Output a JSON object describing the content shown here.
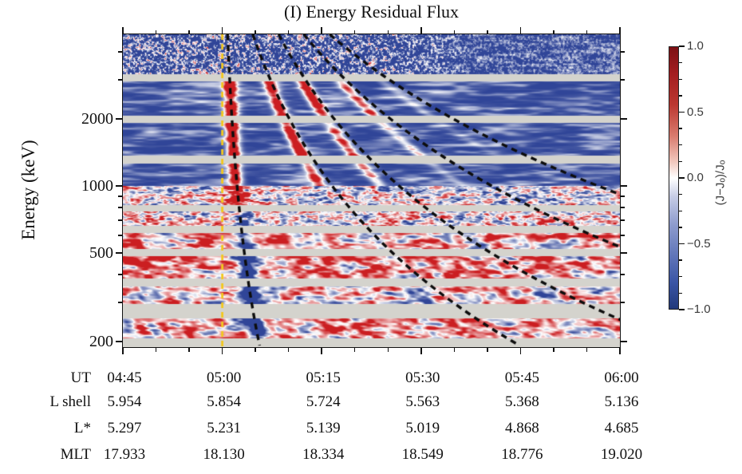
{
  "chart_data": {
    "type": "heatmap",
    "title": "(I) Energy Residual Flux",
    "x_axis": {
      "label": "UT",
      "start": "04:45",
      "end": "06:00",
      "duration_minutes": 75,
      "major_tick_minutes": 15,
      "minor_tick_minutes": 5
    },
    "y_axis": {
      "label": "Energy (keV)",
      "scale": "log",
      "range_keV": [
        190,
        4797
      ],
      "major_ticks_keV": [
        2000,
        1000,
        500,
        200
      ],
      "minor_ticks_keV": [
        4000,
        3000,
        900,
        800,
        700,
        600,
        400,
        300
      ]
    },
    "colorbar": {
      "label": "(J−Jₒ)/Jₒ",
      "range": [
        -1.0,
        1.0
      ],
      "major_tick_labels": [
        "1.0",
        "0.5",
        "0.0",
        "−0.5",
        "−1.0"
      ],
      "minor_tick_step": 0.125,
      "color_positive": "#c01e21",
      "color_zero": "#ffffff",
      "color_negative": "#304598"
    },
    "injection_line": {
      "time_label": "05:00",
      "time_minutes": 15,
      "color": "#f3c81e",
      "style": "dashed-vertical"
    },
    "drift_echo_curves": {
      "style": "dashed-black",
      "model": "t_minutes(E) = t_top + amp*((4797/E_keV)^0.5 - 1)/3.894",
      "curves": [
        {
          "t_top_min": 15.8,
          "amp_min": 4.7
        },
        {
          "t_top_min": 19.6,
          "amp_min": 39.2
        },
        {
          "t_top_min": 23.5,
          "amp_min": 59.5
        },
        {
          "t_top_min": 27.3,
          "amp_min": 92.8
        },
        {
          "t_top_min": 31.2,
          "amp_min": 132.5
        }
      ]
    },
    "data_gap_bands_keV": [
      [
        2970,
        3200
      ],
      [
        1920,
        2070
      ],
      [
        1270,
        1370
      ],
      [
        768,
        827
      ],
      [
        615,
        662
      ],
      [
        484,
        521
      ],
      [
        356,
        387
      ],
      [
        256,
        295
      ],
      [
        190,
        208
      ]
    ],
    "channels": [
      {
        "keV": [
          3200,
          4797
        ],
        "texture": "speckle"
      },
      {
        "keV": [
          2070,
          2970
        ],
        "texture": "stripes",
        "stripe_strengths": [
          2.4,
          2.2,
          2.0,
          1.6,
          0.5
        ]
      },
      {
        "keV": [
          1370,
          1920
        ],
        "texture": "stripes",
        "stripe_strengths": [
          2.4,
          2.1,
          1.7,
          0.9,
          0.2
        ]
      },
      {
        "keV": [
          1000,
          1270
        ],
        "texture": "stripes",
        "stripe_strengths": [
          2.2,
          1.8,
          1.2,
          0.35,
          0
        ]
      },
      {
        "keV": [
          827,
          1000
        ],
        "texture": "mottle-fine",
        "bias": -0.05,
        "red_streak1": 1.3
      },
      {
        "keV": [
          662,
          768
        ],
        "texture": "mottle-fine",
        "bias": 0.05,
        "blue_streak1": 0.6
      },
      {
        "keV": [
          521,
          615
        ],
        "texture": "mottle",
        "bias": 0.22,
        "blue_streak1": 1.6
      },
      {
        "keV": [
          387,
          484
        ],
        "texture": "mottle",
        "bias": 0.33,
        "blue_streak1": 2.2
      },
      {
        "keV": [
          295,
          356
        ],
        "texture": "mottle",
        "bias": 0.15,
        "blue_streak1": 2.0
      },
      {
        "keV": [
          208,
          256
        ],
        "texture": "mottle",
        "bias": 0.25,
        "blue_streak1": 2.2
      }
    ],
    "table": {
      "rows": [
        {
          "label": "UT",
          "values": [
            "04:45",
            "05:00",
            "05:15",
            "05:30",
            "05:45",
            "06:00"
          ]
        },
        {
          "label": "L shell",
          "values": [
            "5.954",
            "5.854",
            "5.724",
            "5.563",
            "5.368",
            "5.136"
          ]
        },
        {
          "label": "L*",
          "values": [
            "5.297",
            "5.231",
            "5.139",
            "5.019",
            "4.868",
            "4.685"
          ]
        },
        {
          "label": "MLT",
          "values": [
            "17.933",
            "18.130",
            "18.334",
            "18.549",
            "18.776",
            "19.020"
          ]
        }
      ]
    }
  }
}
